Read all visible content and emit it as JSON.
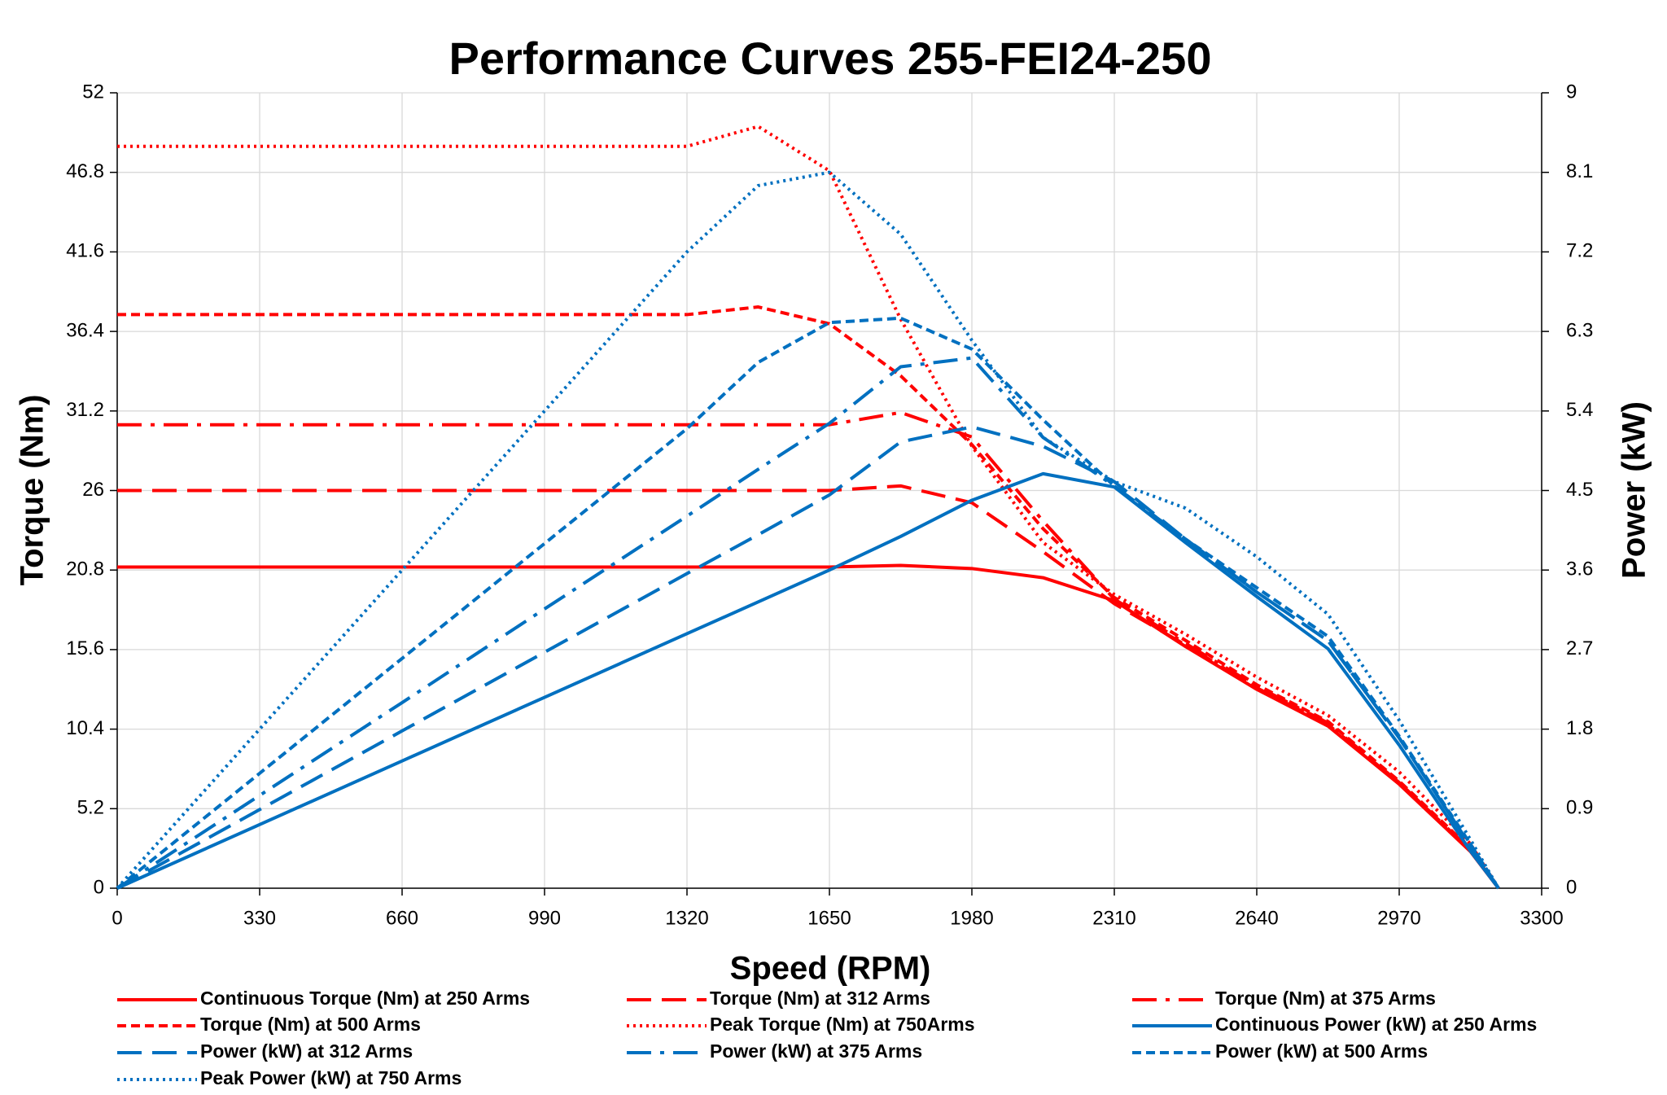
{
  "chart_data": {
    "type": "line",
    "title": "Performance Curves 255-FEI24-250",
    "x_label": "Speed (RPM)",
    "y_label": "Torque (Nm)",
    "y2_label": "Power (kW)",
    "x": [
      0,
      330,
      660,
      990,
      1320,
      1485,
      1650,
      1815,
      1980,
      2145,
      2310,
      2475,
      2640,
      2805,
      2970,
      3135,
      3200
    ],
    "xlim": [
      0,
      3300
    ],
    "xticks": [
      0,
      330,
      660,
      990,
      1320,
      1650,
      1980,
      2310,
      2640,
      2970,
      3300
    ],
    "ylim": [
      0,
      52
    ],
    "yticks": [
      0,
      5.2,
      10.4,
      15.6,
      20.8,
      26,
      31.2,
      36.4,
      41.6,
      46.8,
      52
    ],
    "y2lim": [
      0,
      9
    ],
    "y2ticks": [
      0,
      0.9,
      1.8,
      2.7,
      3.6,
      4.5,
      5.4,
      6.3,
      7.2,
      8.1,
      9
    ],
    "grid": true,
    "series": [
      {
        "name": "Continuous Torque (Nm) at 250 Arms",
        "color": "#ff0000",
        "dash": "solid",
        "axis": "y",
        "values": [
          21,
          21,
          21,
          21,
          21,
          21,
          21,
          21.1,
          20.9,
          20.3,
          18.8,
          15.8,
          13.0,
          10.6,
          6.8,
          2.4,
          0
        ]
      },
      {
        "name": "Torque (Nm) at 312 Arms",
        "color": "#ff0000",
        "dash": "long-dash",
        "axis": "y",
        "values": [
          26,
          26,
          26,
          26,
          26,
          26,
          26,
          26.3,
          25.2,
          22.0,
          18.6,
          15.9,
          13.1,
          10.7,
          6.9,
          2.5,
          0
        ]
      },
      {
        "name": " Torque (Nm) at 375 Arms",
        "color": "#ff0000",
        "dash": "dash-dot",
        "axis": "y",
        "values": [
          30.3,
          30.3,
          30.3,
          30.3,
          30.3,
          30.3,
          30.3,
          31.1,
          29.5,
          24.0,
          18.9,
          16.0,
          13.2,
          10.8,
          6.9,
          2.5,
          0
        ]
      },
      {
        "name": " Torque (Nm) at 500 Arms",
        "color": "#ff0000",
        "dash": "short-dash",
        "axis": "y",
        "values": [
          37.5,
          37.5,
          37.5,
          37.5,
          37.5,
          38.0,
          36.9,
          33.5,
          29.0,
          23.5,
          19.0,
          16.2,
          13.3,
          10.9,
          7.0,
          2.6,
          0
        ]
      },
      {
        "name": "Peak Torque (Nm) at 750Arms",
        "color": "#ff0000",
        "dash": "dot",
        "axis": "y",
        "values": [
          48.5,
          48.5,
          48.5,
          48.5,
          48.5,
          49.8,
          46.9,
          37.2,
          28.9,
          22.6,
          19.2,
          16.6,
          13.8,
          11.3,
          7.6,
          2.9,
          0
        ]
      },
      {
        "name": "Continuous Power (kW) at 250 Arms",
        "color": "#0070c0",
        "dash": "solid",
        "axis": "y2",
        "values": [
          0,
          0.72,
          1.44,
          2.16,
          2.88,
          3.24,
          3.6,
          3.98,
          4.39,
          4.69,
          4.54,
          3.91,
          3.3,
          2.71,
          1.62,
          0.42,
          0
        ]
      },
      {
        "name": "Power (kW) at 312 Arms",
        "color": "#0070c0",
        "dash": "long-dash",
        "axis": "y2",
        "values": [
          0,
          0.89,
          1.78,
          2.67,
          3.56,
          4.0,
          4.45,
          5.05,
          5.22,
          5.0,
          4.6,
          3.95,
          3.35,
          2.8,
          1.7,
          0.48,
          0
        ]
      },
      {
        "name": "Power (kW) at 375 Arms",
        "color": "#0070c0",
        "dash": "dash-dot",
        "axis": "y2",
        "values": [
          0,
          1.05,
          2.1,
          3.16,
          4.21,
          4.74,
          5.26,
          5.9,
          6.0,
          5.1,
          4.55,
          3.95,
          3.35,
          2.8,
          1.7,
          0.48,
          0
        ]
      },
      {
        "name": "Power (kW) at 500 Arms",
        "color": "#0070c0",
        "dash": "short-dash",
        "axis": "y2",
        "values": [
          0,
          1.3,
          2.6,
          3.9,
          5.2,
          5.95,
          6.4,
          6.45,
          6.1,
          5.3,
          4.55,
          3.95,
          3.4,
          2.85,
          1.72,
          0.5,
          0
        ]
      },
      {
        "name": "Peak Power (kW) at 750 Arms",
        "color": "#0070c0",
        "dash": "dot",
        "axis": "y2",
        "values": [
          0,
          1.8,
          3.6,
          5.4,
          7.2,
          7.95,
          8.1,
          7.4,
          6.2,
          5.1,
          4.6,
          4.3,
          3.75,
          3.1,
          1.9,
          0.55,
          0
        ]
      }
    ]
  }
}
